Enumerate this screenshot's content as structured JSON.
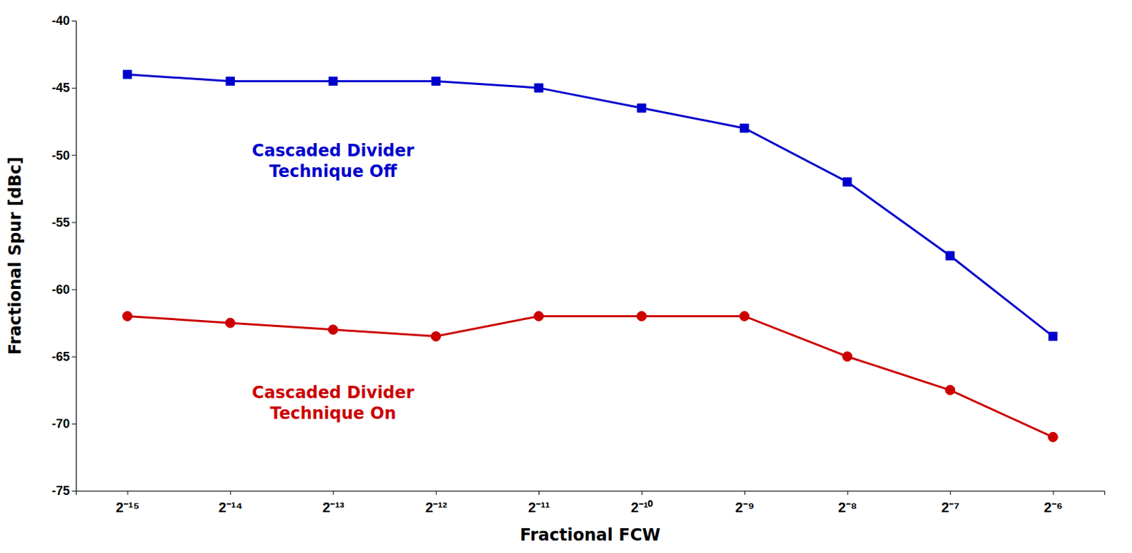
{
  "chart_data": {
    "type": "line",
    "xlabel": "Fractional FCW",
    "ylabel": "Fractional Spur [dBc]",
    "categories": [
      "2⁻¹⁵",
      "2⁻¹⁴",
      "2⁻¹³",
      "2⁻¹²",
      "2⁻¹¹",
      "2⁻¹⁰",
      "2⁻⁹",
      "2⁻⁸",
      "2⁻⁷",
      "2⁻⁶"
    ],
    "series": [
      {
        "color": "#0000CC",
        "marker": "square",
        "line_style": "solid",
        "values": [
          -44.0,
          -44.5,
          -44.5,
          -44.5,
          -45.0,
          -46.5,
          -48.0,
          -52.0,
          -57.5,
          -63.5
        ]
      },
      {
        "color": "#CC0000",
        "marker": "circle",
        "line_style": "solid",
        "values": [
          -62.0,
          -62.5,
          -63.0,
          -63.5,
          -62.0,
          -62.0,
          -62.0,
          -65.0,
          -67.5,
          -71.0
        ]
      }
    ],
    "ylim": [
      -75,
      -40
    ],
    "yticks": [
      -75,
      -70,
      -65,
      -60,
      -55,
      -50,
      -45,
      -40
    ],
    "grid": false,
    "annotations": [
      {
        "text": [
          "Cascaded Divider",
          "Technique Off"
        ],
        "x": "2⁻¹³",
        "y": -50.5,
        "color": "#0000CC"
      },
      {
        "text": [
          "Cascaded Divider",
          "Technique On"
        ],
        "x": "2⁻¹³",
        "y": -68.5,
        "color": "#CC0000"
      }
    ]
  }
}
